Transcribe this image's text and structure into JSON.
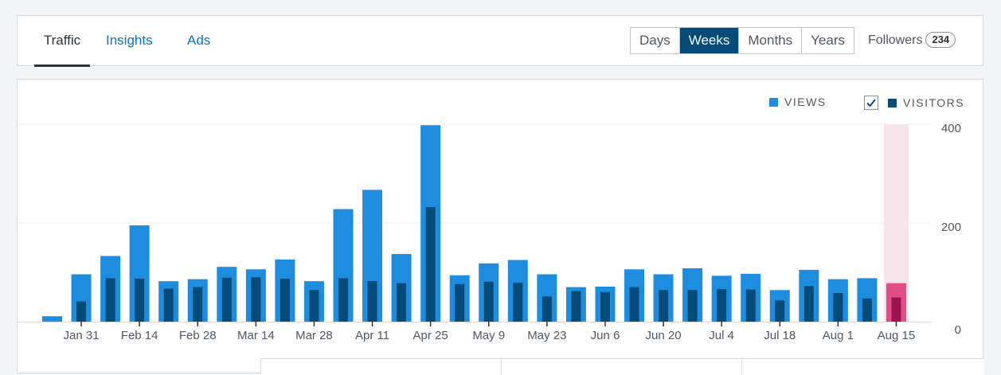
{
  "nav": {
    "tabs": [
      {
        "label": "Traffic",
        "active": true
      },
      {
        "label": "Insights",
        "active": false
      },
      {
        "label": "Ads",
        "active": false
      }
    ],
    "periods": [
      {
        "label": "Days",
        "active": false
      },
      {
        "label": "Weeks",
        "active": true
      },
      {
        "label": "Months",
        "active": false
      },
      {
        "label": "Years",
        "active": false
      }
    ],
    "followers_label": "Followers",
    "followers_count": "234"
  },
  "legend": {
    "views_label": "VIEWS",
    "visitors_label": "VISITORS",
    "visitors_checked": true
  },
  "colors": {
    "views": "#1e8cdf",
    "visitors": "#044b7a",
    "highlight_views": "#e34c84",
    "highlight_visitors": "#9b1450",
    "highlight_bg": "#f9e3ea",
    "accent": "#044b7a"
  },
  "chart_data": {
    "type": "bar",
    "categories": [
      "",
      "Jan 31",
      "",
      "Feb 14",
      "",
      "Feb 28",
      "",
      "Mar 14",
      "",
      "Mar 28",
      "",
      "Apr 11",
      "",
      "Apr 25",
      "",
      "May 9",
      "",
      "May 23",
      "",
      "Jun 6",
      "",
      "Jun 20",
      "",
      "Jul 4",
      "",
      "Jul 18",
      "",
      "Aug 1",
      "",
      "Aug 15"
    ],
    "series": [
      {
        "name": "VIEWS",
        "values": [
          11,
          96,
          133,
          195,
          82,
          86,
          111,
          106,
          126,
          82,
          228,
          267,
          137,
          398,
          94,
          118,
          125,
          96,
          70,
          71,
          106,
          96,
          108,
          93,
          97,
          64,
          105,
          86,
          88,
          78
        ]
      },
      {
        "name": "VISITORS",
        "values": [
          0,
          41,
          88,
          87,
          67,
          70,
          89,
          90,
          87,
          64,
          88,
          82,
          78,
          232,
          76,
          81,
          79,
          51,
          62,
          60,
          70,
          64,
          64,
          66,
          65,
          43,
          72,
          58,
          47,
          49
        ]
      }
    ],
    "yticks": [
      0,
      200,
      400
    ],
    "ylim": [
      0,
      400
    ],
    "highlight_index": 29,
    "grid": true
  }
}
